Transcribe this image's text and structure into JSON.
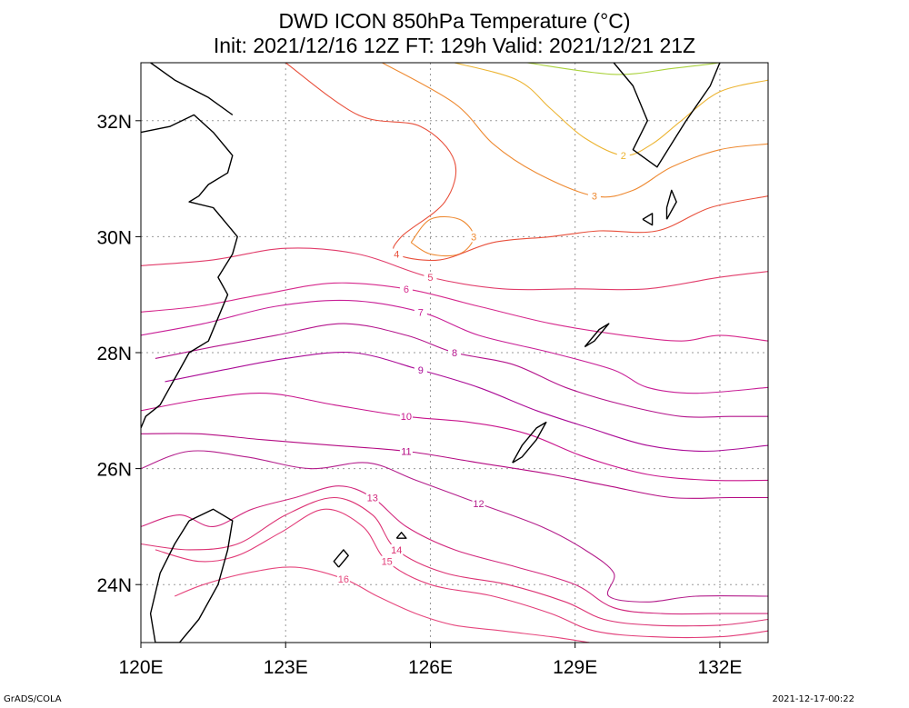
{
  "title": {
    "line1": "DWD ICON 850hPa Temperature (°C)",
    "line2": "Init: 2021/12/16 12Z  FT: 129h  Valid: 2021/12/21 21Z"
  },
  "map": {
    "lon_range": [
      120,
      133
    ],
    "lat_range": [
      23,
      33
    ],
    "x_ticks": [
      {
        "value": 120,
        "label": "120E"
      },
      {
        "value": 123,
        "label": "123E"
      },
      {
        "value": 126,
        "label": "126E"
      },
      {
        "value": 129,
        "label": "129E"
      },
      {
        "value": 132,
        "label": "132E"
      }
    ],
    "y_ticks": [
      {
        "value": 24,
        "label": "24N"
      },
      {
        "value": 26,
        "label": "26N"
      },
      {
        "value": 28,
        "label": "28N"
      },
      {
        "value": 30,
        "label": "30N"
      },
      {
        "value": 32,
        "label": "32N"
      }
    ],
    "grid": true,
    "contour_colors": {
      "2": "#ecb432",
      "3": "#ee8a32",
      "4": "#e8503c",
      "5": "#e13c6a",
      "6": "#d6288c",
      "7": "#c81e96",
      "8": "#b4148c",
      "9": "#aa0a96",
      "10": "#c8148c",
      "11": "#b40a82",
      "12": "#b41e8c",
      "13": "#d2287d",
      "14": "#dc3273",
      "15": "#e23c78",
      "16": "#e6467d",
      "1": "#aad23c"
    }
  },
  "contours": [
    {
      "value": 1,
      "label": "",
      "points": [
        [
          128.0,
          33.0
        ],
        [
          129.8,
          32.8
        ],
        [
          131.0,
          32.9
        ],
        [
          132.0,
          33.0
        ]
      ]
    },
    {
      "value": 2,
      "label": "2",
      "points": [
        [
          126.5,
          33.0
        ],
        [
          127.8,
          32.7
        ],
        [
          128.5,
          32.2
        ],
        [
          129.2,
          31.7
        ],
        [
          130.0,
          31.4
        ],
        [
          130.6,
          31.6
        ],
        [
          131.2,
          32.0
        ],
        [
          132.0,
          32.5
        ],
        [
          133.0,
          32.7
        ]
      ]
    },
    {
      "value": 3,
      "label": "3",
      "points": [
        [
          125.0,
          33.0
        ],
        [
          126.5,
          32.3
        ],
        [
          127.3,
          31.6
        ],
        [
          128.2,
          31.1
        ],
        [
          129.4,
          30.7
        ],
        [
          130.2,
          30.8
        ],
        [
          131.0,
          31.2
        ],
        [
          132.0,
          31.5
        ],
        [
          133.0,
          31.6
        ]
      ]
    },
    {
      "value": 3,
      "label": "3",
      "points": [
        [
          125.6,
          29.9
        ],
        [
          126.0,
          30.3
        ],
        [
          126.6,
          30.3
        ],
        [
          126.9,
          30.0
        ],
        [
          126.6,
          29.7
        ],
        [
          126.0,
          29.7
        ],
        [
          125.6,
          29.9
        ]
      ]
    },
    {
      "value": 4,
      "label": "4",
      "points": [
        [
          123.0,
          33.0
        ],
        [
          124.5,
          32.1
        ],
        [
          125.8,
          31.9
        ],
        [
          126.5,
          31.3
        ],
        [
          126.3,
          30.6
        ],
        [
          125.4,
          30.0
        ],
        [
          125.3,
          29.7
        ],
        [
          126.2,
          29.6
        ],
        [
          127.3,
          29.9
        ],
        [
          128.5,
          30.0
        ],
        [
          129.5,
          30.1
        ],
        [
          130.7,
          30.1
        ],
        [
          131.8,
          30.5
        ],
        [
          133.0,
          30.7
        ]
      ]
    },
    {
      "value": 5,
      "label": "5",
      "points": [
        [
          120.0,
          29.5
        ],
        [
          121.5,
          29.6
        ],
        [
          123.0,
          29.8
        ],
        [
          124.5,
          29.7
        ],
        [
          126.0,
          29.3
        ],
        [
          127.5,
          29.1
        ],
        [
          129.0,
          29.1
        ],
        [
          130.5,
          29.1
        ],
        [
          132.0,
          29.3
        ],
        [
          133.0,
          29.4
        ]
      ]
    },
    {
      "value": 6,
      "label": "6",
      "points": [
        [
          120.0,
          28.7
        ],
        [
          121.2,
          28.8
        ],
        [
          122.5,
          29.0
        ],
        [
          124.0,
          29.2
        ],
        [
          125.5,
          29.1
        ],
        [
          127.0,
          28.8
        ],
        [
          128.5,
          28.5
        ],
        [
          130.0,
          28.3
        ],
        [
          131.2,
          28.2
        ],
        [
          132.0,
          28.3
        ],
        [
          133.0,
          28.2
        ]
      ]
    },
    {
      "value": 7,
      "label": "7",
      "points": [
        [
          120.0,
          28.3
        ],
        [
          121.3,
          28.5
        ],
        [
          122.8,
          28.8
        ],
        [
          124.3,
          28.9
        ],
        [
          125.8,
          28.7
        ],
        [
          127.0,
          28.3
        ],
        [
          128.5,
          28.0
        ],
        [
          129.8,
          27.7
        ],
        [
          130.5,
          27.4
        ],
        [
          131.5,
          27.3
        ],
        [
          133.0,
          27.4
        ]
      ]
    },
    {
      "value": 8,
      "label": "8",
      "points": [
        [
          120.3,
          27.9
        ],
        [
          121.5,
          28.1
        ],
        [
          122.8,
          28.3
        ],
        [
          124.2,
          28.5
        ],
        [
          125.5,
          28.3
        ],
        [
          126.5,
          28.0
        ],
        [
          127.7,
          27.8
        ],
        [
          128.8,
          27.4
        ],
        [
          130.0,
          27.1
        ],
        [
          131.2,
          26.9
        ],
        [
          132.2,
          26.9
        ],
        [
          133.0,
          26.9
        ]
      ]
    },
    {
      "value": 9,
      "label": "9",
      "points": [
        [
          120.5,
          27.5
        ],
        [
          121.7,
          27.7
        ],
        [
          123.0,
          27.9
        ],
        [
          124.4,
          28.0
        ],
        [
          125.8,
          27.7
        ],
        [
          127.0,
          27.4
        ],
        [
          128.2,
          27.0
        ],
        [
          129.3,
          26.7
        ],
        [
          130.5,
          26.4
        ],
        [
          131.7,
          26.3
        ],
        [
          133.0,
          26.4
        ]
      ]
    },
    {
      "value": 10,
      "label": "10",
      "points": [
        [
          120.0,
          27.0
        ],
        [
          121.3,
          27.2
        ],
        [
          122.6,
          27.3
        ],
        [
          124.0,
          27.1
        ],
        [
          125.5,
          26.9
        ],
        [
          126.8,
          26.8
        ],
        [
          128.0,
          26.6
        ],
        [
          129.2,
          26.2
        ],
        [
          130.5,
          25.9
        ],
        [
          131.8,
          25.8
        ],
        [
          133.0,
          25.8
        ]
      ]
    },
    {
      "value": 11,
      "label": "11",
      "points": [
        [
          120.0,
          26.6
        ],
        [
          121.2,
          26.6
        ],
        [
          122.5,
          26.5
        ],
        [
          124.0,
          26.4
        ],
        [
          125.5,
          26.3
        ],
        [
          127.0,
          26.1
        ],
        [
          128.5,
          25.9
        ],
        [
          129.7,
          25.7
        ],
        [
          131.0,
          25.5
        ],
        [
          132.2,
          25.5
        ],
        [
          133.0,
          25.5
        ]
      ]
    },
    {
      "value": 12,
      "label": "12",
      "points": [
        [
          120.0,
          26.0
        ],
        [
          121.0,
          26.3
        ],
        [
          122.2,
          26.2
        ],
        [
          123.5,
          26.0
        ],
        [
          124.7,
          26.1
        ],
        [
          125.7,
          25.8
        ],
        [
          127.0,
          25.4
        ],
        [
          128.3,
          25.0
        ],
        [
          129.2,
          24.6
        ],
        [
          129.8,
          24.2
        ],
        [
          129.7,
          23.8
        ],
        [
          130.5,
          23.7
        ],
        [
          131.5,
          23.8
        ],
        [
          133.0,
          23.8
        ]
      ]
    },
    {
      "value": 13,
      "label": "13",
      "points": [
        [
          120.0,
          25.0
        ],
        [
          120.8,
          25.2
        ],
        [
          121.5,
          25.0
        ],
        [
          122.3,
          25.3
        ],
        [
          123.2,
          25.5
        ],
        [
          124.1,
          25.7
        ],
        [
          124.8,
          25.5
        ],
        [
          125.5,
          25.0
        ],
        [
          126.5,
          24.6
        ],
        [
          127.8,
          24.3
        ],
        [
          129.0,
          24.0
        ],
        [
          129.8,
          23.6
        ],
        [
          130.8,
          23.5
        ],
        [
          132.0,
          23.5
        ],
        [
          133.0,
          23.5
        ]
      ]
    },
    {
      "value": 14,
      "label": "14",
      "points": [
        [
          120.0,
          24.7
        ],
        [
          121.0,
          24.6
        ],
        [
          122.0,
          24.7
        ],
        [
          123.0,
          25.2
        ],
        [
          124.0,
          25.5
        ],
        [
          124.8,
          25.2
        ],
        [
          125.3,
          24.6
        ],
        [
          126.3,
          24.2
        ],
        [
          127.6,
          24.0
        ],
        [
          128.8,
          23.7
        ],
        [
          129.6,
          23.4
        ],
        [
          130.6,
          23.3
        ],
        [
          132.0,
          23.3
        ],
        [
          133.0,
          23.4
        ]
      ]
    },
    {
      "value": 15,
      "label": "15",
      "points": [
        [
          120.3,
          24.6
        ],
        [
          121.2,
          24.4
        ],
        [
          122.0,
          24.5
        ],
        [
          122.9,
          24.9
        ],
        [
          123.8,
          25.3
        ],
        [
          124.6,
          25.0
        ],
        [
          125.1,
          24.4
        ],
        [
          126.0,
          24.0
        ],
        [
          127.3,
          23.8
        ],
        [
          128.5,
          23.5
        ],
        [
          129.4,
          23.2
        ],
        [
          130.6,
          23.1
        ],
        [
          132.0,
          23.1
        ],
        [
          133.0,
          23.2
        ]
      ]
    },
    {
      "value": 16,
      "label": "16",
      "points": [
        [
          120.7,
          23.8
        ],
        [
          121.3,
          24.0
        ],
        [
          122.2,
          24.2
        ],
        [
          123.2,
          24.3
        ],
        [
          124.2,
          24.1
        ],
        [
          124.9,
          23.8
        ],
        [
          125.7,
          23.5
        ],
        [
          126.5,
          23.3
        ],
        [
          127.5,
          23.2
        ],
        [
          128.5,
          23.1
        ],
        [
          129.3,
          23.0
        ]
      ]
    }
  ],
  "coastlines": [
    {
      "name": "china-coast",
      "points": [
        [
          120.0,
          31.8
        ],
        [
          120.6,
          31.9
        ],
        [
          121.1,
          32.1
        ],
        [
          121.5,
          31.8
        ],
        [
          121.9,
          31.4
        ],
        [
          121.8,
          31.1
        ],
        [
          121.4,
          30.9
        ],
        [
          121.2,
          30.7
        ],
        [
          121.0,
          30.6
        ],
        [
          121.5,
          30.5
        ],
        [
          122.0,
          30.0
        ],
        [
          121.9,
          29.7
        ],
        [
          121.6,
          29.3
        ],
        [
          121.8,
          29.0
        ],
        [
          121.6,
          28.6
        ],
        [
          121.4,
          28.2
        ],
        [
          121.0,
          28.0
        ],
        [
          120.8,
          27.7
        ],
        [
          120.6,
          27.4
        ],
        [
          120.4,
          27.1
        ],
        [
          120.1,
          26.9
        ],
        [
          120.0,
          26.7
        ]
      ]
    },
    {
      "name": "china-coast-north",
      "points": [
        [
          120.2,
          33.0
        ],
        [
          120.7,
          32.7
        ],
        [
          121.4,
          32.4
        ],
        [
          121.9,
          32.1
        ]
      ]
    },
    {
      "name": "taiwan",
      "points": [
        [
          121.0,
          25.1
        ],
        [
          121.5,
          25.3
        ],
        [
          121.9,
          25.1
        ],
        [
          121.8,
          24.6
        ],
        [
          121.6,
          24.0
        ],
        [
          121.2,
          23.4
        ],
        [
          120.8,
          23.0
        ],
        [
          120.3,
          23.0
        ],
        [
          120.2,
          23.5
        ],
        [
          120.4,
          24.2
        ],
        [
          120.7,
          24.7
        ],
        [
          121.0,
          25.1
        ]
      ]
    },
    {
      "name": "kyushu-south",
      "points": [
        [
          129.8,
          33.0
        ],
        [
          130.2,
          32.6
        ],
        [
          130.5,
          32.0
        ],
        [
          130.2,
          31.5
        ],
        [
          130.7,
          31.2
        ],
        [
          131.0,
          31.6
        ],
        [
          131.3,
          32.0
        ],
        [
          131.8,
          32.6
        ],
        [
          132.0,
          33.0
        ]
      ]
    },
    {
      "name": "okinawa",
      "points": [
        [
          127.7,
          26.1
        ],
        [
          127.9,
          26.4
        ],
        [
          128.2,
          26.7
        ],
        [
          128.4,
          26.8
        ],
        [
          128.2,
          26.5
        ],
        [
          127.9,
          26.2
        ],
        [
          127.7,
          26.1
        ]
      ]
    },
    {
      "name": "amami",
      "points": [
        [
          129.2,
          28.1
        ],
        [
          129.5,
          28.4
        ],
        [
          129.7,
          28.5
        ],
        [
          129.4,
          28.2
        ],
        [
          129.2,
          28.1
        ]
      ]
    },
    {
      "name": "miyako",
      "points": [
        [
          125.3,
          24.8
        ],
        [
          125.4,
          24.9
        ],
        [
          125.5,
          24.8
        ],
        [
          125.3,
          24.8
        ]
      ]
    },
    {
      "name": "ishigaki",
      "points": [
        [
          124.1,
          24.3
        ],
        [
          124.3,
          24.5
        ],
        [
          124.2,
          24.6
        ],
        [
          124.0,
          24.4
        ],
        [
          124.1,
          24.3
        ]
      ]
    },
    {
      "name": "yakushima",
      "points": [
        [
          130.4,
          30.3
        ],
        [
          130.6,
          30.4
        ],
        [
          130.6,
          30.2
        ],
        [
          130.4,
          30.3
        ]
      ]
    },
    {
      "name": "tanegashima",
      "points": [
        [
          130.9,
          30.3
        ],
        [
          131.1,
          30.6
        ],
        [
          131.0,
          30.8
        ],
        [
          130.9,
          30.5
        ],
        [
          130.9,
          30.3
        ]
      ]
    }
  ],
  "footer": {
    "left": "GrADS/COLA",
    "right": "2021-12-17-00:22"
  }
}
